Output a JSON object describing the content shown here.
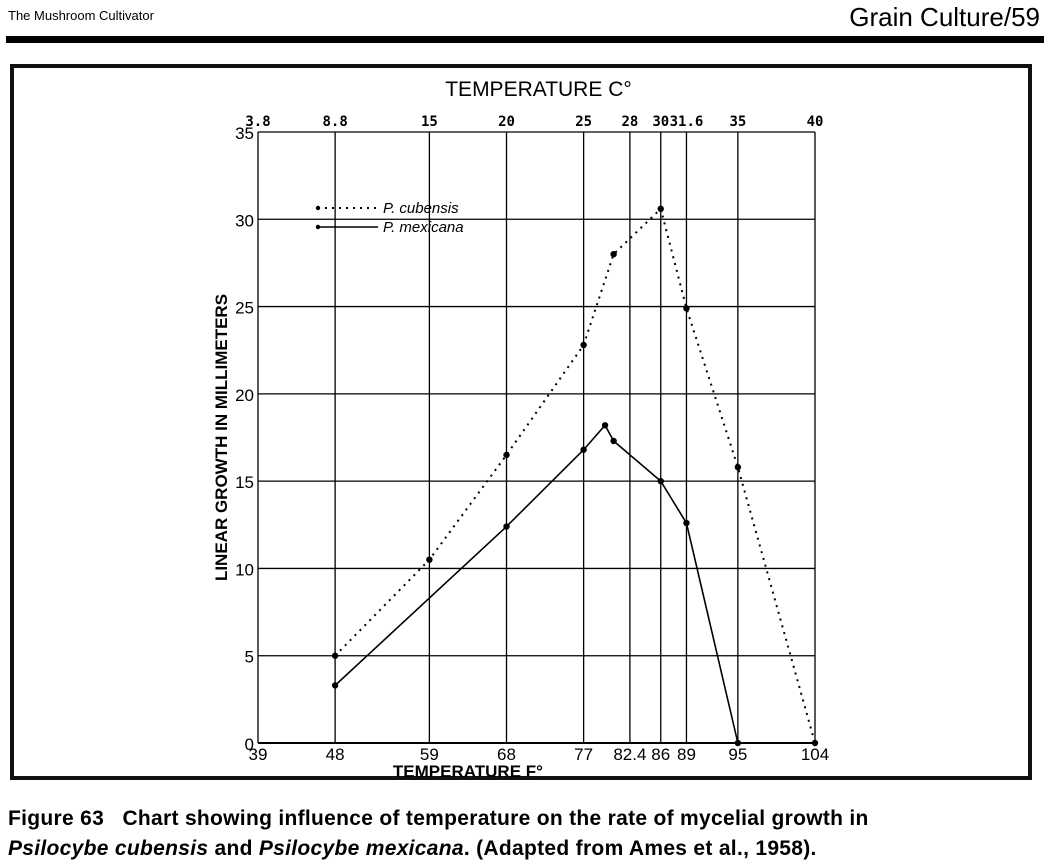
{
  "header": {
    "book_title": "The Mushroom Cultivator",
    "section": "Grain Culture/59"
  },
  "chart_data": {
    "type": "line",
    "title": "TEMPERATURE C°",
    "xlabel": "TEMPERATURE F°",
    "ylabel": "LINEAR GROWTH IN MILLIMETERS",
    "xlim": [
      39,
      104
    ],
    "ylim": [
      0,
      35
    ],
    "y_ticks": [
      "0",
      "5",
      "10",
      "15",
      "20",
      "25",
      "30",
      "35"
    ],
    "y_tick_values": [
      0,
      5,
      10,
      15,
      20,
      25,
      30,
      35
    ],
    "x_bottom_ticks": [
      "39",
      "48",
      "59",
      "68",
      "77",
      "82.4",
      "86",
      "89",
      "95",
      "104"
    ],
    "x_bottom_values": [
      39,
      48,
      59,
      68,
      77,
      82.4,
      86,
      89,
      95,
      104
    ],
    "x_top_ticks": [
      "3.8",
      "8.8",
      "15",
      "20",
      "25",
      "28",
      "30",
      "31.6",
      "35",
      "40"
    ],
    "x_top_values_f": [
      39,
      48,
      59,
      68,
      77,
      82.4,
      86,
      89,
      95,
      104
    ],
    "legend_position": "top-left",
    "series": [
      {
        "name": "P. cubensis",
        "style": "dotted",
        "x": [
          48,
          59,
          68,
          77,
          80.5,
          86,
          89,
          95,
          104
        ],
        "y": [
          5,
          10.5,
          16.5,
          22.8,
          28,
          30.6,
          24.9,
          15.8,
          0
        ]
      },
      {
        "name": "P. mexicana",
        "style": "solid",
        "x": [
          48,
          68,
          77,
          79.5,
          80.5,
          86,
          89,
          95
        ],
        "y": [
          3.3,
          12.4,
          16.8,
          18.2,
          17.3,
          15,
          12.6,
          0
        ]
      }
    ]
  },
  "caption": {
    "label": "Figure 63",
    "text_a": "Chart showing influence of temperature on the rate of mycelial growth in",
    "species_1": "Psilocybe cubensis",
    "and_word": "and",
    "species_2": "Psilocybe mexicana",
    "text_b": ". (Adapted from Ames et al., 1958)."
  }
}
